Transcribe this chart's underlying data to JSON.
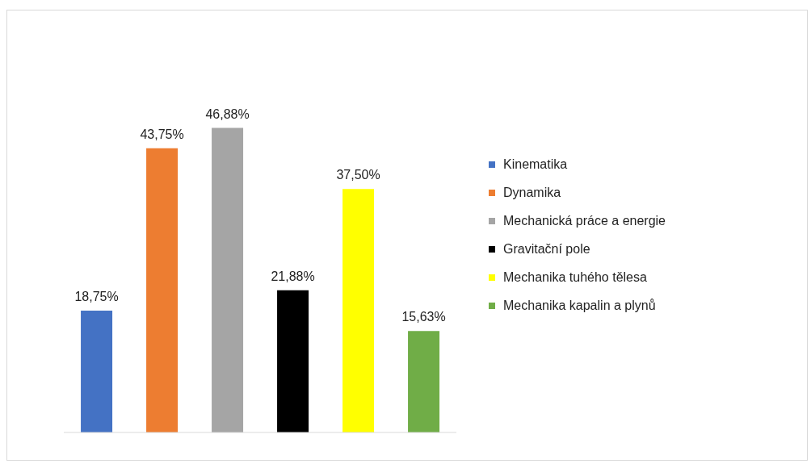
{
  "chart_data": {
    "type": "bar",
    "categories": [
      null,
      null,
      null,
      null,
      null,
      null
    ],
    "stacked": true,
    "series": [
      {
        "name": "Kinematika",
        "color": "#4472c4",
        "values": [
          18.75,
          null,
          null,
          null,
          null,
          null
        ],
        "value_labels": [
          "18,75%",
          null,
          null,
          null,
          null,
          null
        ]
      },
      {
        "name": "Dynamika",
        "color": "#ed7d31",
        "values": [
          null,
          43.75,
          null,
          null,
          null,
          null
        ],
        "value_labels": [
          null,
          "43,75%",
          null,
          null,
          null,
          null
        ]
      },
      {
        "name": "Mechanická práce a energie",
        "color": "#a5a5a5",
        "values": [
          null,
          null,
          46.88,
          null,
          null,
          null
        ],
        "value_labels": [
          null,
          null,
          "46,88%",
          null,
          null,
          null
        ]
      },
      {
        "name": "Gravitační pole",
        "color": "#000000",
        "values": [
          null,
          null,
          null,
          21.88,
          null,
          null
        ],
        "value_labels": [
          null,
          null,
          null,
          "21,88%",
          null,
          null
        ]
      },
      {
        "name": "Mechanika tuhého tělesa",
        "color": "#ffff00",
        "values": [
          null,
          null,
          null,
          null,
          37.5,
          null
        ],
        "value_labels": [
          null,
          null,
          null,
          null,
          "37,50%",
          null
        ]
      },
      {
        "name": "Mechanika kapalin a plynů",
        "color": "#70ad47",
        "values": [
          null,
          null,
          null,
          null,
          null,
          15.63
        ],
        "value_labels": [
          null,
          null,
          null,
          null,
          null,
          "15,63%"
        ]
      }
    ],
    "tick_labels": false,
    "grid": false,
    "legend": "right"
  }
}
